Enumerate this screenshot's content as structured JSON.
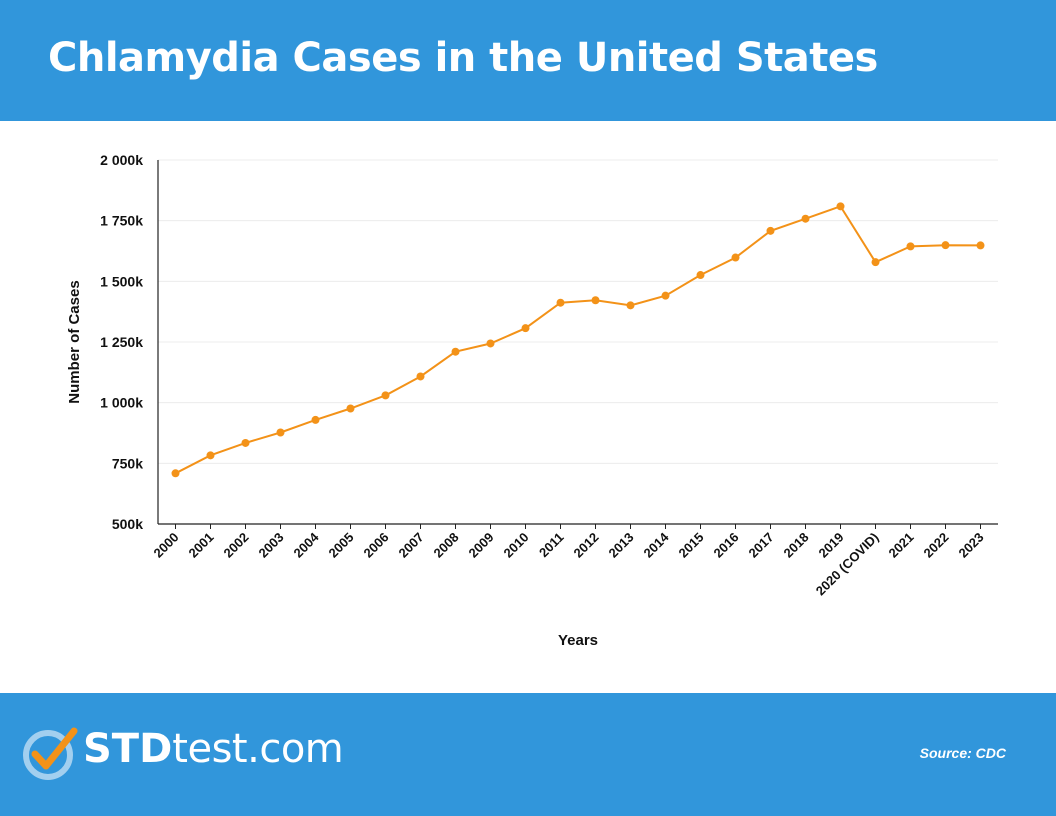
{
  "header": {
    "title": "Chlamydia Cases in the United States"
  },
  "footer": {
    "logo_bold": "STD",
    "logo_light": "test.com",
    "source": "Source:  CDC"
  },
  "colors": {
    "brand_blue": "#3196db",
    "line": "#f39218"
  },
  "chart_data": {
    "type": "line",
    "title": "Chlamydia Cases in the United States",
    "xlabel": "Years",
    "ylabel": "Number of Cases",
    "categories": [
      "2000",
      "2001",
      "2002",
      "2003",
      "2004",
      "2005",
      "2006",
      "2007",
      "2008",
      "2009",
      "2010",
      "2011",
      "2012",
      "2013",
      "2014",
      "2015",
      "2016",
      "2017",
      "2018",
      "2019",
      "2020 (COVID)",
      "2021",
      "2022",
      "2023"
    ],
    "series": [
      {
        "values": [
          709,
          783,
          834,
          877,
          929,
          976,
          1030,
          1108,
          1210,
          1244,
          1307,
          1412,
          1422,
          1401,
          1441,
          1526,
          1598,
          1708,
          1758,
          1809,
          1579,
          1644,
          1649,
          1648
        ]
      }
    ],
    "ylim": [
      500,
      2000
    ],
    "y_ticks": [
      500,
      750,
      1000,
      1250,
      1500,
      1750,
      2000
    ],
    "y_tick_labels": [
      "500k",
      "750k",
      "1 000k",
      "1 250k",
      "1 500k",
      "1 750k",
      "2 000k"
    ],
    "grid": true,
    "legend": "none"
  }
}
